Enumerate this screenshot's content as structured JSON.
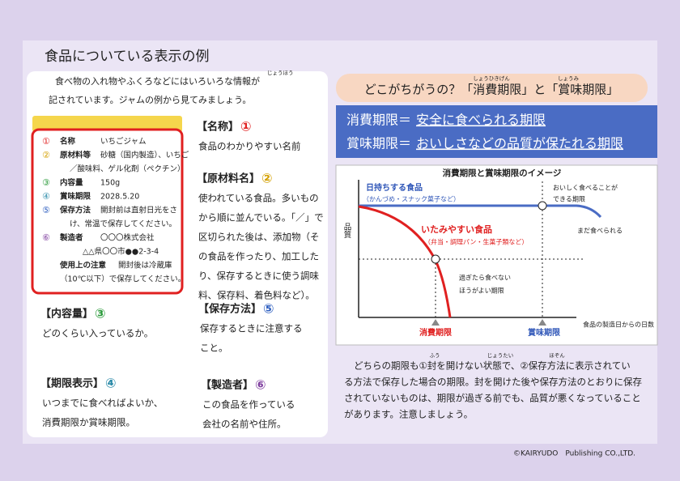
{
  "header": {
    "title": "食品についている表示の例"
  },
  "intro": {
    "lines": [
      "食べ物の入れ物やふくろなどにはいろいろな情報が",
      "記されています。ジャムの例から見てみましょう。"
    ],
    "ruby": "じょうほう"
  },
  "label": {
    "rows": [
      {
        "num": "①",
        "key": "名称",
        "val": "いちごジャム"
      },
      {
        "num": "②",
        "key": "原材料等",
        "val": "砂糖（国内製造）、いちご",
        "cont": "／酸味料、ゲル化剤（ペクチン）"
      },
      {
        "num": "③",
        "key": "内容量",
        "val": "150g"
      },
      {
        "num": "④",
        "key": "賞味期限",
        "val": "2028.5.20"
      },
      {
        "num": "⑤",
        "key": "保存方法",
        "val": "開封前は直射日光をさ",
        "cont": "け、常温で保存してください。"
      },
      {
        "num": "⑥",
        "key": "製造者",
        "val": "〇〇〇株式会社",
        "cont": "△△県〇〇市●●2-3-4"
      }
    ],
    "note": {
      "key": "使用上の注意",
      "val": "開封後は冷蔵庫",
      "cont": "（10℃以下）で保存してください。"
    }
  },
  "items": [
    {
      "head": "【名称】",
      "num": "①",
      "lines": [
        "食品のわかりやすい名前"
      ]
    },
    {
      "head": "【原材料名】",
      "num": "②",
      "lines": [
        "使われている食品。多いもの",
        "から順に並んでいる。「／」で",
        "区切られた後は、添加物（そ",
        "の食品を作ったり、加工した",
        "り、保存するときに使う調味",
        "料、保存料、着色料など）。"
      ]
    },
    {
      "head": "【内容量】",
      "num": "③",
      "lines": [
        "どのくらい入っているか。"
      ]
    },
    {
      "head": "【保存方法】",
      "num": "⑤",
      "lines": [
        "保存するときに注意する",
        "こと。"
      ]
    },
    {
      "head": "【期限表示】",
      "num": "④",
      "lines": [
        "いつまでに食べればよいか、",
        "消費期限か賞味期限。"
      ]
    },
    {
      "head": "【製造者】",
      "num": "⑥",
      "lines": [
        "この食品を作っている",
        "会社の名前や住所。"
      ]
    }
  ],
  "question": {
    "text": "どこがちがうの？「消費期限」と「賞味期限」",
    "ruby1": "しょうひきげん",
    "ruby2": "しょうみ"
  },
  "definitions": [
    {
      "key": "消費期限＝",
      "meaning": "安全に食べられる期限"
    },
    {
      "key": "賞味期限＝",
      "meaning": "おいしさなどの品質が保たれる期限"
    }
  ],
  "image": {
    "title": "消費期限と賞味期限のイメージ",
    "y_label": "品質",
    "x_label": "食品の製造日からの日数",
    "blue": {
      "name": "日持ちする食品",
      "note": "（かんづめ・スナック菓子など）"
    },
    "red": {
      "name": "いたみやすい食品",
      "note": "（弁当・調理パン・生菓子類など）"
    },
    "annotations": [
      "おいしく食べることが",
      "できる期限",
      "まだ食べられる",
      "過ぎたら食べない",
      "ほうがよい期限"
    ],
    "marks": [
      "消費期限",
      "賞味期限"
    ]
  },
  "paragraph": {
    "lines": [
      "どちらの期限も①封を開けない状態で、②保存方法に表示されてい",
      "る方法で保存した場合の期限。封を開けた後や保存方法のとおりに保存",
      "されていないものは、期限が過ぎる前でも、品質が悪くなっていること",
      "があります。注意しましょう。"
    ],
    "rubies": [
      "ふう",
      "じょうたい",
      "ほぞん"
    ]
  },
  "footer": {
    "copyright": "©KAIRYUDO　Publishing CO.,LTD."
  }
}
